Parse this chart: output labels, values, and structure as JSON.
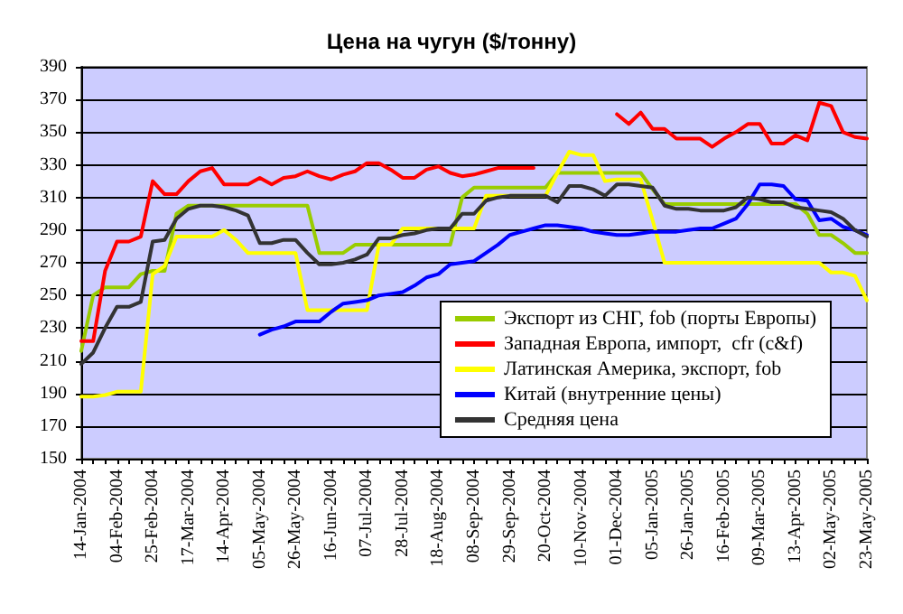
{
  "chart_data": {
    "type": "line",
    "title": "Цена на чугун ($/тонну)",
    "categories": [
      "14-Jan-2004",
      null,
      null,
      "04-Feb-2004",
      null,
      null,
      "25-Feb-2004",
      null,
      null,
      "17-Mar-2004",
      null,
      null,
      "14-Apr-2004",
      null,
      null,
      "05-May-2004",
      null,
      null,
      "26-May-2004",
      null,
      null,
      "16-Jun-2004",
      null,
      null,
      "07-Jul-2004",
      null,
      null,
      "28-Jul-2004",
      null,
      null,
      "18-Aug-2004",
      null,
      null,
      "08-Sep-2004",
      null,
      null,
      "29-Sep-2004",
      null,
      null,
      "20-Oct-2004",
      null,
      null,
      "10-Nov-2004",
      null,
      null,
      "01-Dec-2004",
      null,
      null,
      "05-Jan-2005",
      null,
      null,
      "26-Jan-2005",
      null,
      null,
      "16-Feb-2005",
      null,
      null,
      "09-Mar-2005",
      null,
      null,
      "13-Apr-2005",
      null,
      null,
      "02-May-2005",
      null,
      null,
      "23-May-2005"
    ],
    "series": [
      {
        "name": "Экспорт из СНГ, fob (порты Европы)",
        "color": "#99cc00",
        "values": [
          216,
          250,
          255,
          255,
          255,
          263,
          265,
          265,
          300,
          305,
          305,
          305,
          305,
          305,
          305,
          305,
          305,
          305,
          305,
          305,
          276,
          276,
          276,
          281,
          281,
          281,
          281,
          281,
          281,
          281,
          281,
          281,
          310,
          316,
          316,
          316,
          316,
          316,
          316,
          316,
          325,
          325,
          325,
          325,
          325,
          325,
          325,
          325,
          315,
          306,
          306,
          306,
          306,
          306,
          306,
          306,
          306,
          306,
          306,
          306,
          306,
          300,
          287,
          287,
          282,
          276,
          276
        ]
      },
      {
        "name": "Западная Европа, импорт,  cfr (c&f)",
        "color": "#ff0000",
        "values": [
          222,
          222,
          265,
          283,
          283,
          286,
          320,
          312,
          312,
          320,
          326,
          328,
          318,
          318,
          318,
          322,
          318,
          322,
          323,
          326,
          323,
          321,
          324,
          326,
          331,
          331,
          327,
          322,
          322,
          327,
          329,
          325,
          323,
          324,
          326,
          328,
          328,
          328,
          328,
          null,
          null,
          null,
          null,
          null,
          null,
          361,
          355,
          362,
          352,
          352,
          346,
          346,
          346,
          341,
          346,
          350,
          355,
          355,
          343,
          343,
          348,
          345,
          368,
          366,
          350,
          347,
          346
        ]
      },
      {
        "name": "Латинская Америка, экспорт, fob",
        "color": "#ffff00",
        "values": [
          188,
          188,
          189,
          191,
          191,
          191,
          263,
          268,
          286,
          286,
          286,
          286,
          290,
          284,
          276,
          276,
          276,
          276,
          276,
          241,
          241,
          241,
          241,
          241,
          241,
          281,
          281,
          291,
          291,
          291,
          291,
          291,
          291,
          291,
          311,
          311,
          311,
          311,
          311,
          311,
          325,
          338,
          336,
          336,
          320,
          321,
          321,
          321,
          296,
          270,
          270,
          270,
          270,
          270,
          270,
          270,
          270,
          270,
          270,
          270,
          270,
          270,
          270,
          264,
          264,
          262,
          247
        ]
      },
      {
        "name": "Китай (внутренние цены)",
        "color": "#0000ff",
        "values": [
          null,
          null,
          null,
          null,
          null,
          null,
          null,
          null,
          null,
          null,
          null,
          null,
          null,
          null,
          null,
          226,
          229,
          231,
          234,
          234,
          234,
          240,
          245,
          246,
          247,
          250,
          251,
          252,
          256,
          261,
          263,
          269,
          270,
          271,
          276,
          281,
          287,
          289,
          291,
          293,
          293,
          292,
          291,
          289,
          288,
          287,
          287,
          288,
          289,
          289,
          289,
          290,
          291,
          291,
          294,
          297,
          306,
          318,
          318,
          317,
          309,
          308,
          296,
          297,
          292,
          290,
          287
        ]
      },
      {
        "name": "Средняя цена",
        "color": "#333333",
        "values": [
          208,
          215,
          230,
          243,
          243,
          246,
          283,
          284,
          297,
          303,
          305,
          305,
          304,
          302,
          299,
          282,
          282,
          284,
          284,
          276,
          269,
          269,
          270,
          272,
          275,
          285,
          285,
          287,
          288,
          290,
          291,
          291,
          300,
          300,
          308,
          310,
          311,
          311,
          311,
          311,
          307,
          317,
          317,
          315,
          311,
          318,
          318,
          317,
          316,
          305,
          303,
          303,
          302,
          302,
          302,
          304,
          310,
          309,
          307,
          307,
          304,
          303,
          302,
          301,
          297,
          290,
          286
        ]
      }
    ],
    "ylim": [
      150,
      390
    ],
    "yticks": [
      150,
      170,
      190,
      210,
      230,
      250,
      270,
      290,
      310,
      330,
      350,
      370,
      390
    ],
    "grid": "y",
    "legend": "bottom right",
    "marker": "none",
    "line_style": "solid"
  }
}
